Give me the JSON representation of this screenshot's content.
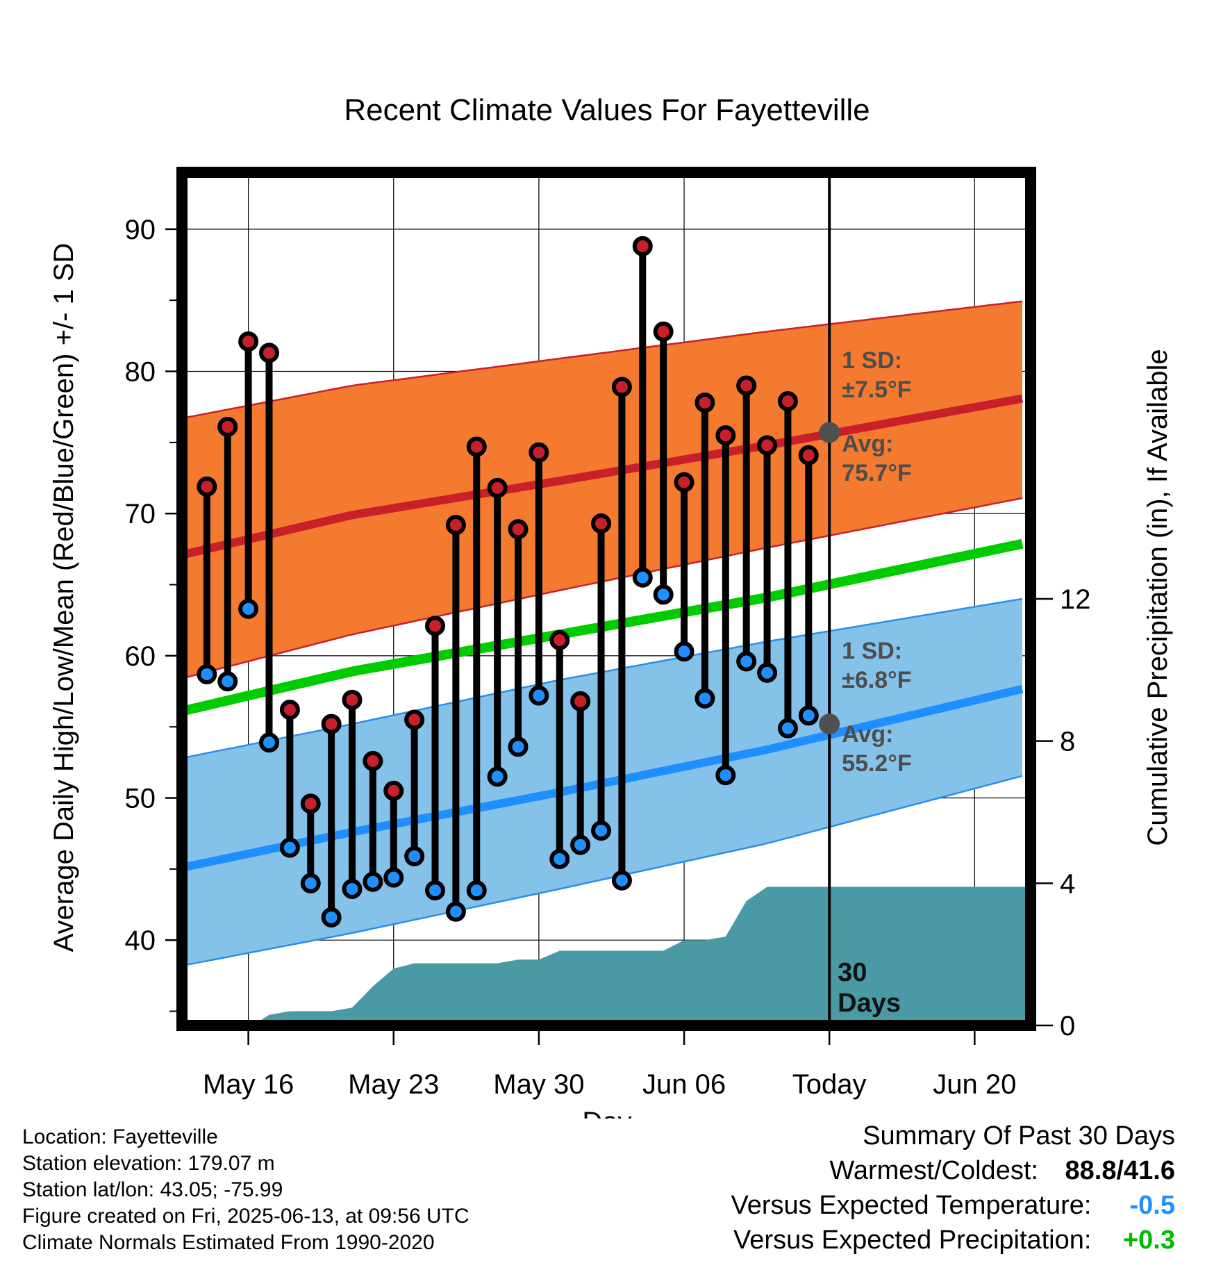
{
  "chart_data": {
    "type": "line",
    "title": "Recent Climate Values For Fayetteville",
    "xlabel": "Day",
    "ylabel": "Average Daily High/Low/Mean (Red/Blue/Green) +/- 1 SD",
    "y2label": "Cumulative Precipitation (in), If Available",
    "ylim": [
      34,
      94
    ],
    "y2lim": [
      0,
      24
    ],
    "y_ticks": [
      40,
      50,
      60,
      70,
      80,
      90
    ],
    "y2_ticks": [
      0,
      4,
      8,
      12
    ],
    "x_ticks": [
      {
        "day": 15,
        "label": "May 16"
      },
      {
        "day": 22,
        "label": "May 23"
      },
      {
        "day": 29,
        "label": "May 30"
      },
      {
        "day": 36,
        "label": "Jun 06"
      },
      {
        "day": 43,
        "label": "Today"
      },
      {
        "day": 50,
        "label": "Jun 20"
      }
    ],
    "xlim": [
      11.8,
      52.7
    ],
    "today_day": 43,
    "grid": true,
    "series": [
      {
        "name": "High",
        "color": "#c8202a",
        "x": [
          13,
          14,
          15,
          16,
          17,
          18,
          19,
          20,
          21,
          22,
          23,
          24,
          25,
          26,
          27,
          28,
          29,
          30,
          31,
          32,
          33,
          34,
          35,
          36,
          37,
          38,
          39,
          40,
          41,
          42
        ],
        "values": [
          71.9,
          76.1,
          82.1,
          81.3,
          56.2,
          49.6,
          55.2,
          56.9,
          52.6,
          50.5,
          55.5,
          62.1,
          69.2,
          74.7,
          71.8,
          68.9,
          74.3,
          61.1,
          56.8,
          69.3,
          78.9,
          88.8,
          82.8,
          72.2,
          77.8,
          75.5,
          79.0,
          74.8,
          77.9,
          74.1
        ]
      },
      {
        "name": "Low",
        "color": "#1f8fff",
        "x": [
          13,
          14,
          15,
          16,
          17,
          18,
          19,
          20,
          21,
          22,
          23,
          24,
          25,
          26,
          27,
          28,
          29,
          30,
          31,
          32,
          33,
          34,
          35,
          36,
          37,
          38,
          39,
          40,
          41,
          42
        ],
        "values": [
          58.7,
          58.2,
          63.3,
          53.9,
          46.5,
          44.0,
          41.6,
          43.6,
          44.1,
          44.4,
          45.9,
          43.5,
          42.0,
          43.5,
          51.5,
          53.6,
          57.2,
          45.7,
          46.7,
          47.7,
          44.2,
          65.5,
          64.3,
          60.3,
          57.0,
          51.6,
          59.6,
          58.8,
          54.9,
          55.8
        ]
      }
    ],
    "normals": {
      "x": [
        11.8,
        20,
        30,
        40,
        52.7
      ],
      "high_avg": [
        67.1,
        69.9,
        72.3,
        74.8,
        78.2
      ],
      "high_upper": [
        76.7,
        79.0,
        80.9,
        82.8,
        85.0
      ],
      "high_lower": [
        58.4,
        61.5,
        64.6,
        67.6,
        71.2
      ],
      "low_avg": [
        45.1,
        47.6,
        50.4,
        53.4,
        57.8
      ],
      "low_upper": [
        52.8,
        55.2,
        58.3,
        61.0,
        64.1
      ],
      "low_lower": [
        38.2,
        40.5,
        43.6,
        46.8,
        51.7
      ],
      "mean": [
        56.1,
        58.9,
        61.5,
        64.1,
        68.0
      ]
    },
    "precip_cumulative": {
      "x": [
        15.2,
        16,
        17,
        18,
        19,
        20,
        21,
        22,
        23,
        24,
        25,
        26,
        27,
        28,
        29,
        30,
        31,
        32,
        33,
        34,
        35,
        36,
        37,
        38,
        39,
        40,
        41,
        42,
        43,
        52.7
      ],
      "values": [
        0.0,
        0.3,
        0.4,
        0.4,
        0.4,
        0.5,
        1.1,
        1.6,
        1.75,
        1.75,
        1.75,
        1.75,
        1.75,
        1.85,
        1.85,
        2.1,
        2.1,
        2.1,
        2.1,
        2.1,
        2.1,
        2.4,
        2.4,
        2.5,
        3.5,
        3.9,
        3.9,
        3.9,
        3.9,
        3.9
      ]
    },
    "annotations": {
      "high_sd_label": "1 SD:",
      "high_sd_value": "±7.5°F",
      "high_avg_label": "Avg:",
      "high_avg_value": "75.7°F",
      "low_sd_label": "1 SD:",
      "low_sd_value": "±6.8°F",
      "low_avg_label": "Avg:",
      "low_avg_value": "55.2°F",
      "days_value": "30",
      "days_unit": "Days",
      "today_high_avg": 75.7,
      "today_low_avg": 55.2
    },
    "colors": {
      "high_band": "#f47a30",
      "high_line": "#c8202a",
      "low_band": "#85c2ea",
      "low_line": "#1f8fff",
      "low_band_edge": "#2b8ee8",
      "mean_line": "#00cc00",
      "precip": "#4a9aa5",
      "today_marker": "#505050"
    }
  },
  "info": {
    "location": "Location: Fayetteville",
    "elevation": "Station elevation: 179.07 m",
    "latlon": "Station lat/lon: 43.05; -75.99",
    "created": "Figure created on Fri, 2025-06-13, at 09:56 UTC",
    "normals": "Climate Normals Estimated From 1990-2020"
  },
  "summary": {
    "title": "Summary Of Past 30 Days",
    "warm_cold_label": "Warmest/Coldest:",
    "warm_cold_value": "88.8/41.6",
    "temp_label": "Versus Expected Temperature:",
    "temp_value": "-0.5",
    "temp_color": "#1f8fff",
    "precip_label": "Versus Expected Precipitation:",
    "precip_value": "+0.3",
    "precip_color": "#00bb00"
  }
}
